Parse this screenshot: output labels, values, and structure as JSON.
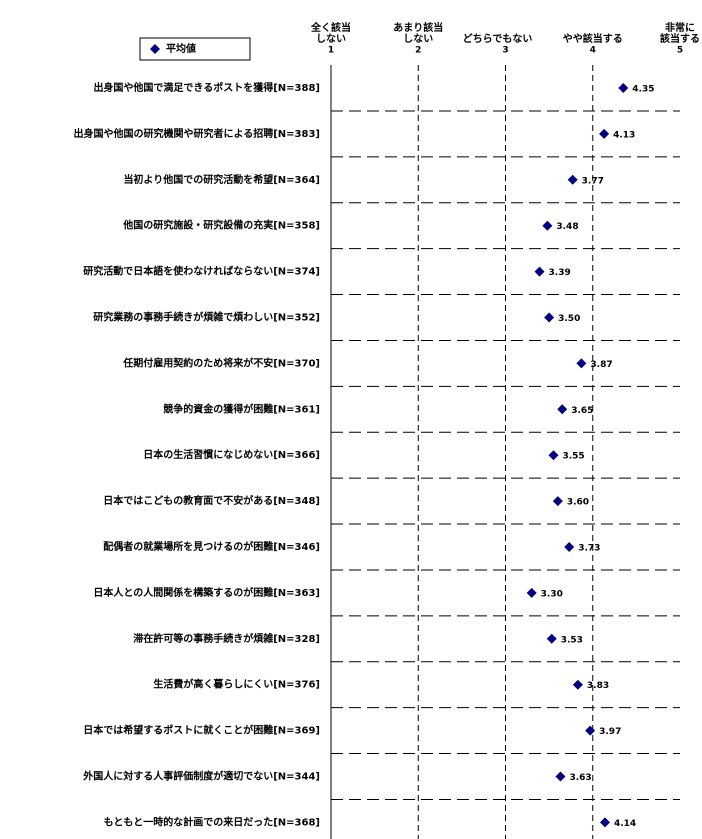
{
  "chart_data": {
    "type": "dot",
    "legend": "平均値",
    "color": "#000080",
    "scale_labels": [
      [
        "全く該当",
        "しない"
      ],
      [
        "あまり該当",
        "しない"
      ],
      [
        "どちらでもない"
      ],
      [
        "やや該当する"
      ],
      [
        "非常に",
        "該当する"
      ]
    ],
    "xlim": [
      1,
      5
    ],
    "xticks": [
      1,
      2,
      3,
      4,
      5
    ],
    "grid": true,
    "categories": [
      "出身国や他国で満足できるポストを獲得[N=388]",
      "出身国や他国の研究機関や研究者による招聘[N=383]",
      "当初より他国での研究活動を希望[N=364]",
      "他国の研究施設・研究設備の充実[N=358]",
      "研究活動で日本語を使わなければならない[N=374]",
      "研究業務の事務手続きが煩雑で煩わしい[N=352]",
      "任期付雇用契約のため将来が不安[N=370]",
      "競争的資金の獲得が困難[N=361]",
      "日本の生活習慣になじめない[N=366]",
      "日本ではこどもの教育面で不安がある[N=348]",
      "配偶者の就業場所を見つけるのが困難[N=346]",
      "日本人との人間関係を構築するのが困難[N=363]",
      "滞在許可等の事務手続きが煩雑[N=328]",
      "生活費が高く暮らしにくい[N=376]",
      "日本では希望するポストに就くことが困難[N=369]",
      "外国人に対する人事評価制度が適切でない[N=344]",
      "もともと一時的な計画での来日だった[N=368]"
    ],
    "values": [
      4.35,
      4.13,
      3.77,
      3.48,
      3.39,
      3.5,
      3.87,
      3.65,
      3.55,
      3.6,
      3.73,
      3.3,
      3.53,
      3.83,
      3.97,
      3.63,
      4.14
    ],
    "value_labels": [
      "4.35",
      "4.13",
      "3.77",
      "3.48",
      "3.39",
      "3.50",
      "3.87",
      "3.65",
      "3.55",
      "3.60",
      "3.73",
      "3.30",
      "3.53",
      "3.83",
      "3.97",
      "3.63",
      "4.14"
    ]
  }
}
